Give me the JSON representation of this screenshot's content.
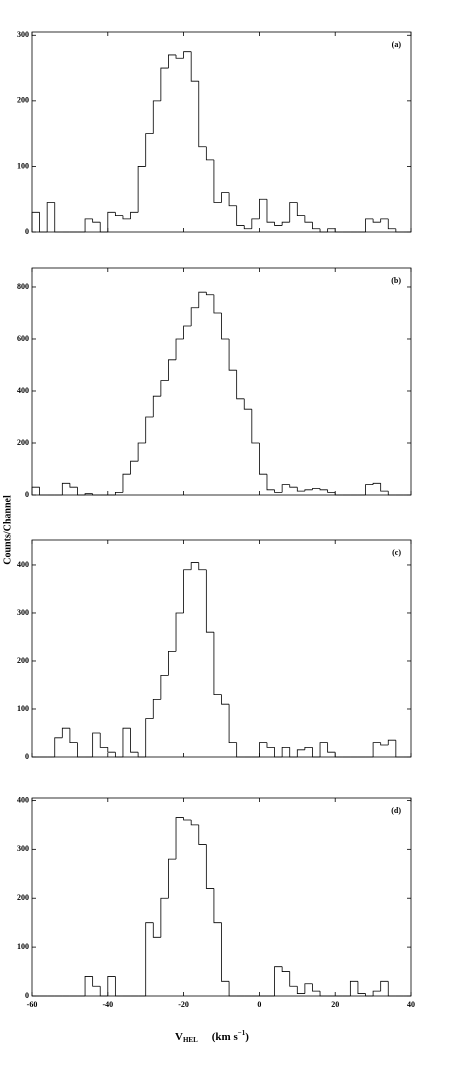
{
  "chart_data": [
    {
      "type": "histogram",
      "annotation": "(a)",
      "bins": [
        -60,
        -58,
        -56,
        -54,
        -52,
        -50,
        -48,
        -46,
        -44,
        -42,
        -40,
        -38,
        -36,
        -34,
        -32,
        -30,
        -28,
        -26,
        -24,
        -22,
        -20,
        -18,
        -16,
        -14,
        -12,
        -10,
        -8,
        -6,
        -4,
        -2,
        0,
        2,
        4,
        6,
        8,
        10,
        12,
        14,
        16,
        18,
        20,
        22,
        24,
        26,
        28,
        30,
        32,
        34,
        36,
        38,
        40
      ],
      "values": [
        30,
        0,
        45,
        0,
        0,
        0,
        0,
        20,
        15,
        0,
        30,
        25,
        20,
        30,
        100,
        150,
        200,
        250,
        270,
        265,
        275,
        230,
        130,
        110,
        45,
        60,
        40,
        10,
        5,
        20,
        50,
        15,
        10,
        15,
        45,
        25,
        15,
        5,
        0,
        5,
        0,
        0,
        0,
        0,
        20,
        15,
        20,
        5,
        0,
        0
      ],
      "xlim": [
        -60,
        40
      ],
      "ylim": [
        0,
        305
      ],
      "yticks": [
        0,
        100,
        200,
        300
      ]
    },
    {
      "type": "histogram",
      "annotation": "(b)",
      "bins": [
        -60,
        -58,
        -56,
        -54,
        -52,
        -50,
        -48,
        -46,
        -44,
        -42,
        -40,
        -38,
        -36,
        -34,
        -32,
        -30,
        -28,
        -26,
        -24,
        -22,
        -20,
        -18,
        -16,
        -14,
        -12,
        -10,
        -8,
        -6,
        -4,
        -2,
        0,
        2,
        4,
        6,
        8,
        10,
        12,
        14,
        16,
        18,
        20,
        22,
        24,
        26,
        28,
        30,
        32,
        34,
        36,
        38,
        40
      ],
      "values": [
        30,
        0,
        0,
        0,
        45,
        30,
        0,
        5,
        0,
        0,
        0,
        10,
        80,
        130,
        200,
        300,
        380,
        440,
        520,
        600,
        650,
        720,
        780,
        770,
        700,
        600,
        480,
        370,
        330,
        200,
        80,
        20,
        10,
        40,
        30,
        15,
        20,
        25,
        20,
        10,
        0,
        0,
        0,
        0,
        40,
        45,
        15,
        0,
        0,
        0
      ],
      "xlim": [
        -60,
        40
      ],
      "ylim": [
        0,
        873
      ],
      "yticks": [
        0,
        200,
        400,
        600,
        800
      ],
      "ylabel": "Counts/Channel"
    },
    {
      "type": "histogram",
      "annotation": "(c)",
      "bins": [
        -60,
        -58,
        -56,
        -54,
        -52,
        -50,
        -48,
        -46,
        -44,
        -42,
        -40,
        -38,
        -36,
        -34,
        -32,
        -30,
        -28,
        -26,
        -24,
        -22,
        -20,
        -18,
        -16,
        -14,
        -12,
        -10,
        -8,
        -6,
        -4,
        -2,
        0,
        2,
        4,
        6,
        8,
        10,
        12,
        14,
        16,
        18,
        20,
        22,
        24,
        26,
        28,
        30,
        32,
        34,
        36,
        38,
        40
      ],
      "values": [
        0,
        0,
        0,
        40,
        60,
        30,
        0,
        0,
        50,
        20,
        10,
        0,
        60,
        10,
        0,
        80,
        120,
        170,
        220,
        300,
        390,
        405,
        390,
        260,
        130,
        110,
        30,
        0,
        0,
        0,
        30,
        20,
        0,
        20,
        0,
        15,
        20,
        0,
        30,
        10,
        0,
        0,
        0,
        0,
        0,
        30,
        25,
        35,
        0,
        0
      ],
      "xlim": [
        -60,
        40
      ],
      "ylim": [
        0,
        452
      ],
      "yticks": [
        0,
        100,
        200,
        300,
        400
      ]
    },
    {
      "type": "histogram",
      "annotation": "(d)",
      "bins": [
        -60,
        -58,
        -56,
        -54,
        -52,
        -50,
        -48,
        -46,
        -44,
        -42,
        -40,
        -38,
        -36,
        -34,
        -32,
        -30,
        -28,
        -26,
        -24,
        -22,
        -20,
        -18,
        -16,
        -14,
        -12,
        -10,
        -8,
        -6,
        -4,
        -2,
        0,
        2,
        4,
        6,
        8,
        10,
        12,
        14,
        16,
        18,
        20,
        22,
        24,
        26,
        28,
        30,
        32,
        34,
        36,
        38,
        40
      ],
      "values": [
        0,
        0,
        0,
        0,
        0,
        0,
        0,
        40,
        20,
        0,
        40,
        0,
        0,
        0,
        0,
        150,
        120,
        200,
        280,
        365,
        360,
        350,
        310,
        220,
        150,
        30,
        0,
        0,
        0,
        0,
        0,
        0,
        60,
        50,
        20,
        5,
        25,
        10,
        0,
        0,
        0,
        0,
        30,
        5,
        0,
        10,
        30,
        0,
        0,
        0
      ],
      "xlim": [
        -60,
        40
      ],
      "ylim": [
        0,
        405
      ],
      "yticks": [
        0,
        100,
        200,
        300,
        400
      ],
      "xticks": [
        -60,
        -40,
        -20,
        0,
        20,
        40
      ],
      "xlabel": {
        "symbol": "V",
        "subscript": "HEL",
        "unit_open": "(km s",
        "exponent": "−1",
        "unit_close": ")"
      }
    }
  ]
}
